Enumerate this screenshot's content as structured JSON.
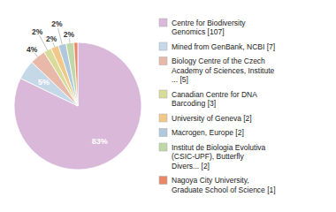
{
  "chart_data": {
    "type": "pie",
    "categories": [
      "Centre for Biodiversity\nGenomics [107]",
      "Mined from GenBank, NCBI [7]",
      "Biology Centre of the Czech\nAcademy of Sciences, Institute\n... [5]",
      "Canadian Centre for DNA\nBarcoding [3]",
      "University of Geneva [2]",
      "Macrogen, Europe [2]",
      "Institut de Biologia Evolutiva\n(CSIC-UPF), Butterfly\nDivers... [2]",
      "Nagoya City University,\nGraduate School of Science [1]"
    ],
    "values": [
      83,
      5,
      4,
      2,
      2,
      2,
      2,
      1
    ],
    "value_labels": [
      "83%",
      "5%",
      "4%",
      "2%",
      "2%",
      "2%",
      "2%",
      null
    ],
    "colors": [
      "#d9b8d9",
      "#c5d8e8",
      "#e8b8a8",
      "#d8dc98",
      "#f0c88a",
      "#b0c8dc",
      "#c0d8a8",
      "#e88868"
    ],
    "data_labels": true,
    "legend": "right"
  }
}
